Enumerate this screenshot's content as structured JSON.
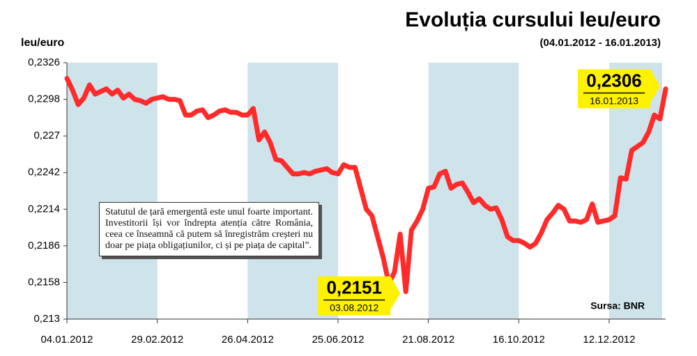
{
  "chart_data": {
    "type": "line",
    "title": "Evoluția cursului leu/euro",
    "subtitle": "(04.01.2012 - 16.01.2013)",
    "y_label": "leu/euro",
    "source": "Sursa: BNR",
    "quote": "Statutul de țară emergentă este unul foarte important. Investitorii își vor îndrepta atenția către România, ceea ce înseamnă că putem să înregistrăm creșteri nu doar pe piața obligațiunilor, ci și pe piața de capital”.",
    "color": "#ff2a2a",
    "categories": [
      "04.01.2012",
      null,
      null,
      null,
      null,
      null,
      null,
      null,
      null,
      null,
      null,
      null,
      null,
      null,
      null,
      null,
      "29.02.2012",
      null,
      null,
      null,
      null,
      null,
      null,
      null,
      null,
      null,
      null,
      null,
      null,
      null,
      null,
      null,
      "26.04.2012",
      null,
      null,
      null,
      null,
      null,
      null,
      null,
      null,
      null,
      null,
      null,
      null,
      null,
      null,
      null,
      "25.06.2012",
      null,
      null,
      null,
      null,
      null,
      null,
      null,
      null,
      null,
      null,
      null,
      null,
      null,
      null,
      null,
      "21.08.2012",
      null,
      null,
      null,
      null,
      null,
      null,
      null,
      null,
      null,
      null,
      null,
      null,
      null,
      null,
      null,
      "16.10.2012",
      null,
      null,
      null,
      null,
      null,
      null,
      null,
      null,
      null,
      null,
      null,
      null,
      null,
      null,
      null,
      "12.12.2012",
      null,
      null,
      null,
      null,
      null,
      null,
      null,
      null,
      null,
      null
    ],
    "values": [
      0.2314,
      0.2305,
      0.2294,
      0.2299,
      0.2309,
      0.2302,
      0.2304,
      0.2306,
      0.2302,
      0.2305,
      0.2299,
      0.2302,
      0.2298,
      0.2297,
      0.2295,
      0.2298,
      0.2299,
      0.23,
      0.2298,
      0.2298,
      0.2297,
      0.2286,
      0.2286,
      0.2289,
      0.229,
      0.2284,
      0.2286,
      0.2289,
      0.229,
      0.2288,
      0.2288,
      0.2286,
      0.2286,
      0.2291,
      0.2267,
      0.2273,
      0.2265,
      0.2252,
      0.2251,
      0.2246,
      0.2241,
      0.2241,
      0.2242,
      0.2241,
      0.2243,
      0.2244,
      0.2245,
      0.2242,
      0.2241,
      0.2248,
      0.2246,
      0.2246,
      0.223,
      0.2214,
      0.2209,
      0.2193,
      0.2177,
      0.2157,
      0.2166,
      0.2195,
      0.2151,
      0.2198,
      0.2205,
      0.2214,
      0.223,
      0.2231,
      0.2241,
      0.2243,
      0.223,
      0.2233,
      0.2234,
      0.2227,
      0.2219,
      0.2222,
      0.2217,
      0.2214,
      0.2215,
      0.2206,
      0.2193,
      0.219,
      0.219,
      0.2188,
      0.2185,
      0.2188,
      0.2196,
      0.2206,
      0.2211,
      0.2217,
      0.2214,
      0.2205,
      0.2205,
      0.2204,
      0.2206,
      0.2218,
      0.2204,
      0.2205,
      0.2206,
      0.2209,
      0.2238,
      0.2237,
      0.2259,
      0.2262,
      0.2265,
      0.2273,
      0.2286,
      0.2283,
      0.2306
    ],
    "ylim": [
      0.213,
      0.2326
    ],
    "yticks": [
      {
        "value": 0.213,
        "label": "0,213"
      },
      {
        "value": 0.2158,
        "label": "0,2158"
      },
      {
        "value": 0.2186,
        "label": "0,2186"
      },
      {
        "value": 0.2214,
        "label": "0,2214"
      },
      {
        "value": 0.2242,
        "label": "0,2242"
      },
      {
        "value": 0.227,
        "label": "0,227"
      },
      {
        "value": 0.2298,
        "label": "0,2298"
      },
      {
        "value": 0.2326,
        "label": "0,2326"
      }
    ],
    "annotations": [
      {
        "value": 0.2306,
        "label": "0,2306",
        "date": "16.01.2013"
      },
      {
        "value": 0.2151,
        "label": "0,2151",
        "date": "03.08.2012"
      }
    ]
  }
}
